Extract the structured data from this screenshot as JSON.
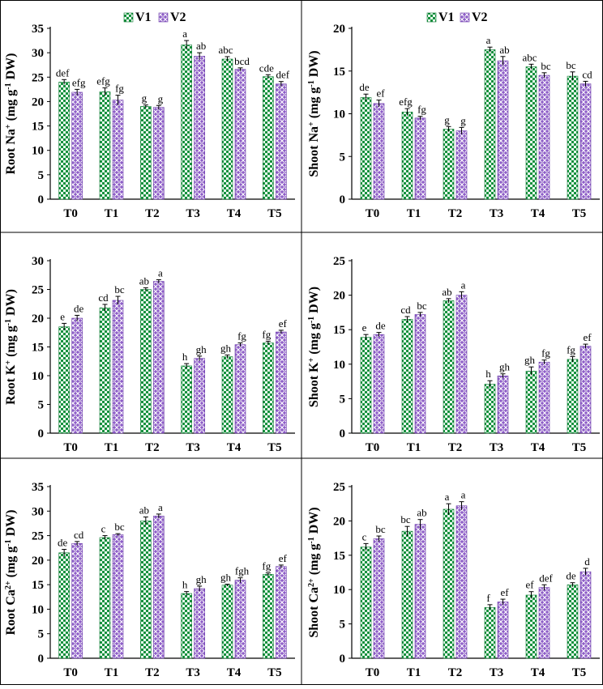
{
  "figure": {
    "legend": [
      {
        "name": "V1",
        "pattern": "v1-pattern"
      },
      {
        "name": "V2",
        "pattern": "v2-pattern"
      }
    ],
    "colors": {
      "v1": "#1a9a44",
      "v2": "#8e5ec8",
      "frame": "#000000"
    }
  },
  "chart_data": [
    {
      "id": "root-na",
      "type": "bar",
      "title": "",
      "ylabel": [
        "Root Na",
        "+",
        " (mg g",
        "-1",
        " DW)"
      ],
      "categories": [
        "T0",
        "T1",
        "T2",
        "T3",
        "T4",
        "T5"
      ],
      "ylim": [
        0,
        35
      ],
      "yticks": [
        0,
        5,
        10,
        15,
        20,
        25,
        30,
        35
      ],
      "legend": true,
      "series": [
        {
          "name": "V1",
          "values": [
            24,
            22,
            19,
            31.6,
            28.7,
            25.1
          ],
          "errors": [
            0.5,
            0.8,
            0.3,
            0.9,
            0.5,
            0.4
          ],
          "labels": [
            "def",
            "efg",
            "g",
            "a",
            "abc",
            "cde"
          ]
        },
        {
          "name": "V2",
          "values": [
            21.9,
            20.3,
            18.8,
            29.3,
            26.6,
            23.6
          ],
          "errors": [
            0.6,
            1.0,
            0.4,
            0.7,
            0.3,
            0.5
          ],
          "labels": [
            "efg",
            "fg",
            "g",
            "ab",
            "bcd",
            "def"
          ]
        }
      ]
    },
    {
      "id": "shoot-na",
      "type": "bar",
      "title": "",
      "ylabel": [
        "Shoot Na",
        "+",
        " (mg g",
        "-1",
        " DW)"
      ],
      "categories": [
        "T0",
        "T1",
        "T2",
        "T3",
        "T4",
        "T5"
      ],
      "ylim": [
        0,
        20
      ],
      "yticks": [
        0,
        5,
        10,
        15,
        20
      ],
      "legend": true,
      "series": [
        {
          "name": "V1",
          "values": [
            11.9,
            10.2,
            8.2,
            17.5,
            15.5,
            14.4
          ],
          "errors": [
            0.4,
            0.4,
            0.3,
            0.3,
            0.3,
            0.5
          ],
          "labels": [
            "de",
            "efg",
            "g",
            "a",
            "abc",
            "bc"
          ]
        },
        {
          "name": "V2",
          "values": [
            11.2,
            9.5,
            8,
            16.2,
            14.5,
            13.5
          ],
          "errors": [
            0.4,
            0.2,
            0.4,
            0.5,
            0.3,
            0.3
          ],
          "labels": [
            "ef",
            "fg",
            "g",
            "ab",
            "bc",
            "cd"
          ]
        }
      ]
    },
    {
      "id": "root-k",
      "type": "bar",
      "title": "",
      "ylabel": [
        "Root K",
        "+",
        " (mg g",
        "-1",
        " DW)"
      ],
      "categories": [
        "T0",
        "T1",
        "T2",
        "T3",
        "T4",
        "T5"
      ],
      "ylim": [
        0,
        30
      ],
      "yticks": [
        0,
        5,
        10,
        15,
        20,
        25,
        30
      ],
      "legend": false,
      "series": [
        {
          "name": "V1",
          "values": [
            18.5,
            21.8,
            25,
            11.7,
            13.3,
            15.7
          ],
          "errors": [
            0.6,
            0.6,
            0.3,
            0.4,
            0.3,
            0.3
          ],
          "labels": [
            "e",
            "cd",
            "ab",
            "h",
            "gh",
            "fg"
          ]
        },
        {
          "name": "V2",
          "values": [
            20,
            23.1,
            26.4,
            13,
            15.4,
            17.6
          ],
          "errors": [
            0.5,
            0.7,
            0.3,
            0.4,
            0.3,
            0.3
          ],
          "labels": [
            "de",
            "bc",
            "a",
            "gh",
            "fg",
            "ef"
          ]
        }
      ]
    },
    {
      "id": "shoot-k",
      "type": "bar",
      "title": "",
      "ylabel": [
        "Shoot K",
        "+",
        " (mg g",
        "-1",
        " DW)"
      ],
      "categories": [
        "T0",
        "T1",
        "T2",
        "T3",
        "T4",
        "T5"
      ],
      "ylim": [
        0,
        25
      ],
      "yticks": [
        0,
        5,
        10,
        15,
        20,
        25
      ],
      "legend": false,
      "series": [
        {
          "name": "V1",
          "values": [
            13.9,
            16.5,
            19.2,
            7.1,
            9,
            10.7
          ],
          "errors": [
            0.4,
            0.4,
            0.3,
            0.5,
            0.6,
            0.4
          ],
          "labels": [
            "e",
            "cd",
            "ab",
            "h",
            "gh",
            "fg"
          ]
        },
        {
          "name": "V2",
          "values": [
            14.3,
            17.2,
            20,
            8.3,
            10.3,
            12.6
          ],
          "errors": [
            0.3,
            0.3,
            0.5,
            0.3,
            0.3,
            0.3
          ],
          "labels": [
            "de",
            "bc",
            "a",
            "gh",
            "fg",
            "ef"
          ]
        }
      ]
    },
    {
      "id": "root-ca",
      "type": "bar",
      "title": "",
      "ylabel": [
        "Root Ca",
        "2+",
        " (mg g",
        "-1",
        " DW)"
      ],
      "categories": [
        "T0",
        "T1",
        "T2",
        "T3",
        "T4",
        "T5"
      ],
      "ylim": [
        0,
        35
      ],
      "yticks": [
        0,
        5,
        10,
        15,
        20,
        25,
        30,
        35
      ],
      "legend": false,
      "series": [
        {
          "name": "V1",
          "values": [
            21.5,
            24.6,
            28,
            13.2,
            14.9,
            17.1
          ],
          "errors": [
            0.7,
            0.4,
            0.8,
            0.4,
            0.2,
            0.3
          ],
          "labels": [
            "de",
            "c",
            "ab",
            "h",
            "gh",
            "fg"
          ]
        },
        {
          "name": "V2",
          "values": [
            23.4,
            25.2,
            29,
            14.2,
            15.9,
            18.7
          ],
          "errors": [
            0.4,
            0.2,
            0.4,
            0.5,
            0.5,
            0.3
          ],
          "labels": [
            "cd",
            "bc",
            "a",
            "gh",
            "fgh",
            "ef"
          ]
        }
      ]
    },
    {
      "id": "shoot-ca",
      "type": "bar",
      "title": "",
      "ylabel": [
        "Shoot Ca",
        "2+",
        " (mg g",
        "-1",
        " DW)"
      ],
      "categories": [
        "T0",
        "T1",
        "T2",
        "T3",
        "T4",
        "T5"
      ],
      "ylim": [
        0,
        25
      ],
      "yticks": [
        0,
        5,
        10,
        15,
        20,
        25
      ],
      "legend": false,
      "series": [
        {
          "name": "V1",
          "values": [
            16.2,
            18.5,
            21.7,
            7.4,
            9.2,
            10.7
          ],
          "errors": [
            0.5,
            0.7,
            0.8,
            0.4,
            0.5,
            0.3
          ],
          "labels": [
            "c",
            "bc",
            "a",
            "f",
            "ef",
            "de"
          ]
        },
        {
          "name": "V2",
          "values": [
            17.4,
            19.5,
            22.2,
            8.2,
            10.3,
            12.6
          ],
          "errors": [
            0.4,
            0.7,
            0.6,
            0.4,
            0.4,
            0.5
          ],
          "labels": [
            "bc",
            "ab",
            "a",
            "ef",
            "def",
            "d"
          ]
        }
      ]
    }
  ]
}
